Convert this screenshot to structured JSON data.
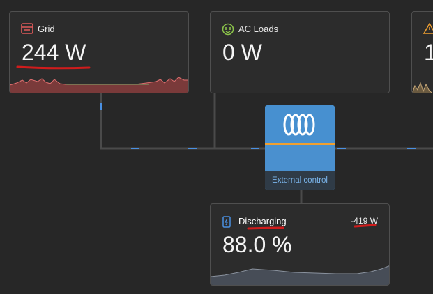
{
  "grid": {
    "title": "Grid",
    "power": "244 W"
  },
  "ac_loads": {
    "title": "AC Loads",
    "power": "0 W"
  },
  "third_card": {
    "power": "1"
  },
  "inverter": {
    "status": "External control"
  },
  "battery": {
    "state": "Discharging",
    "power": "-419 W",
    "soc": "88.0 %"
  }
}
